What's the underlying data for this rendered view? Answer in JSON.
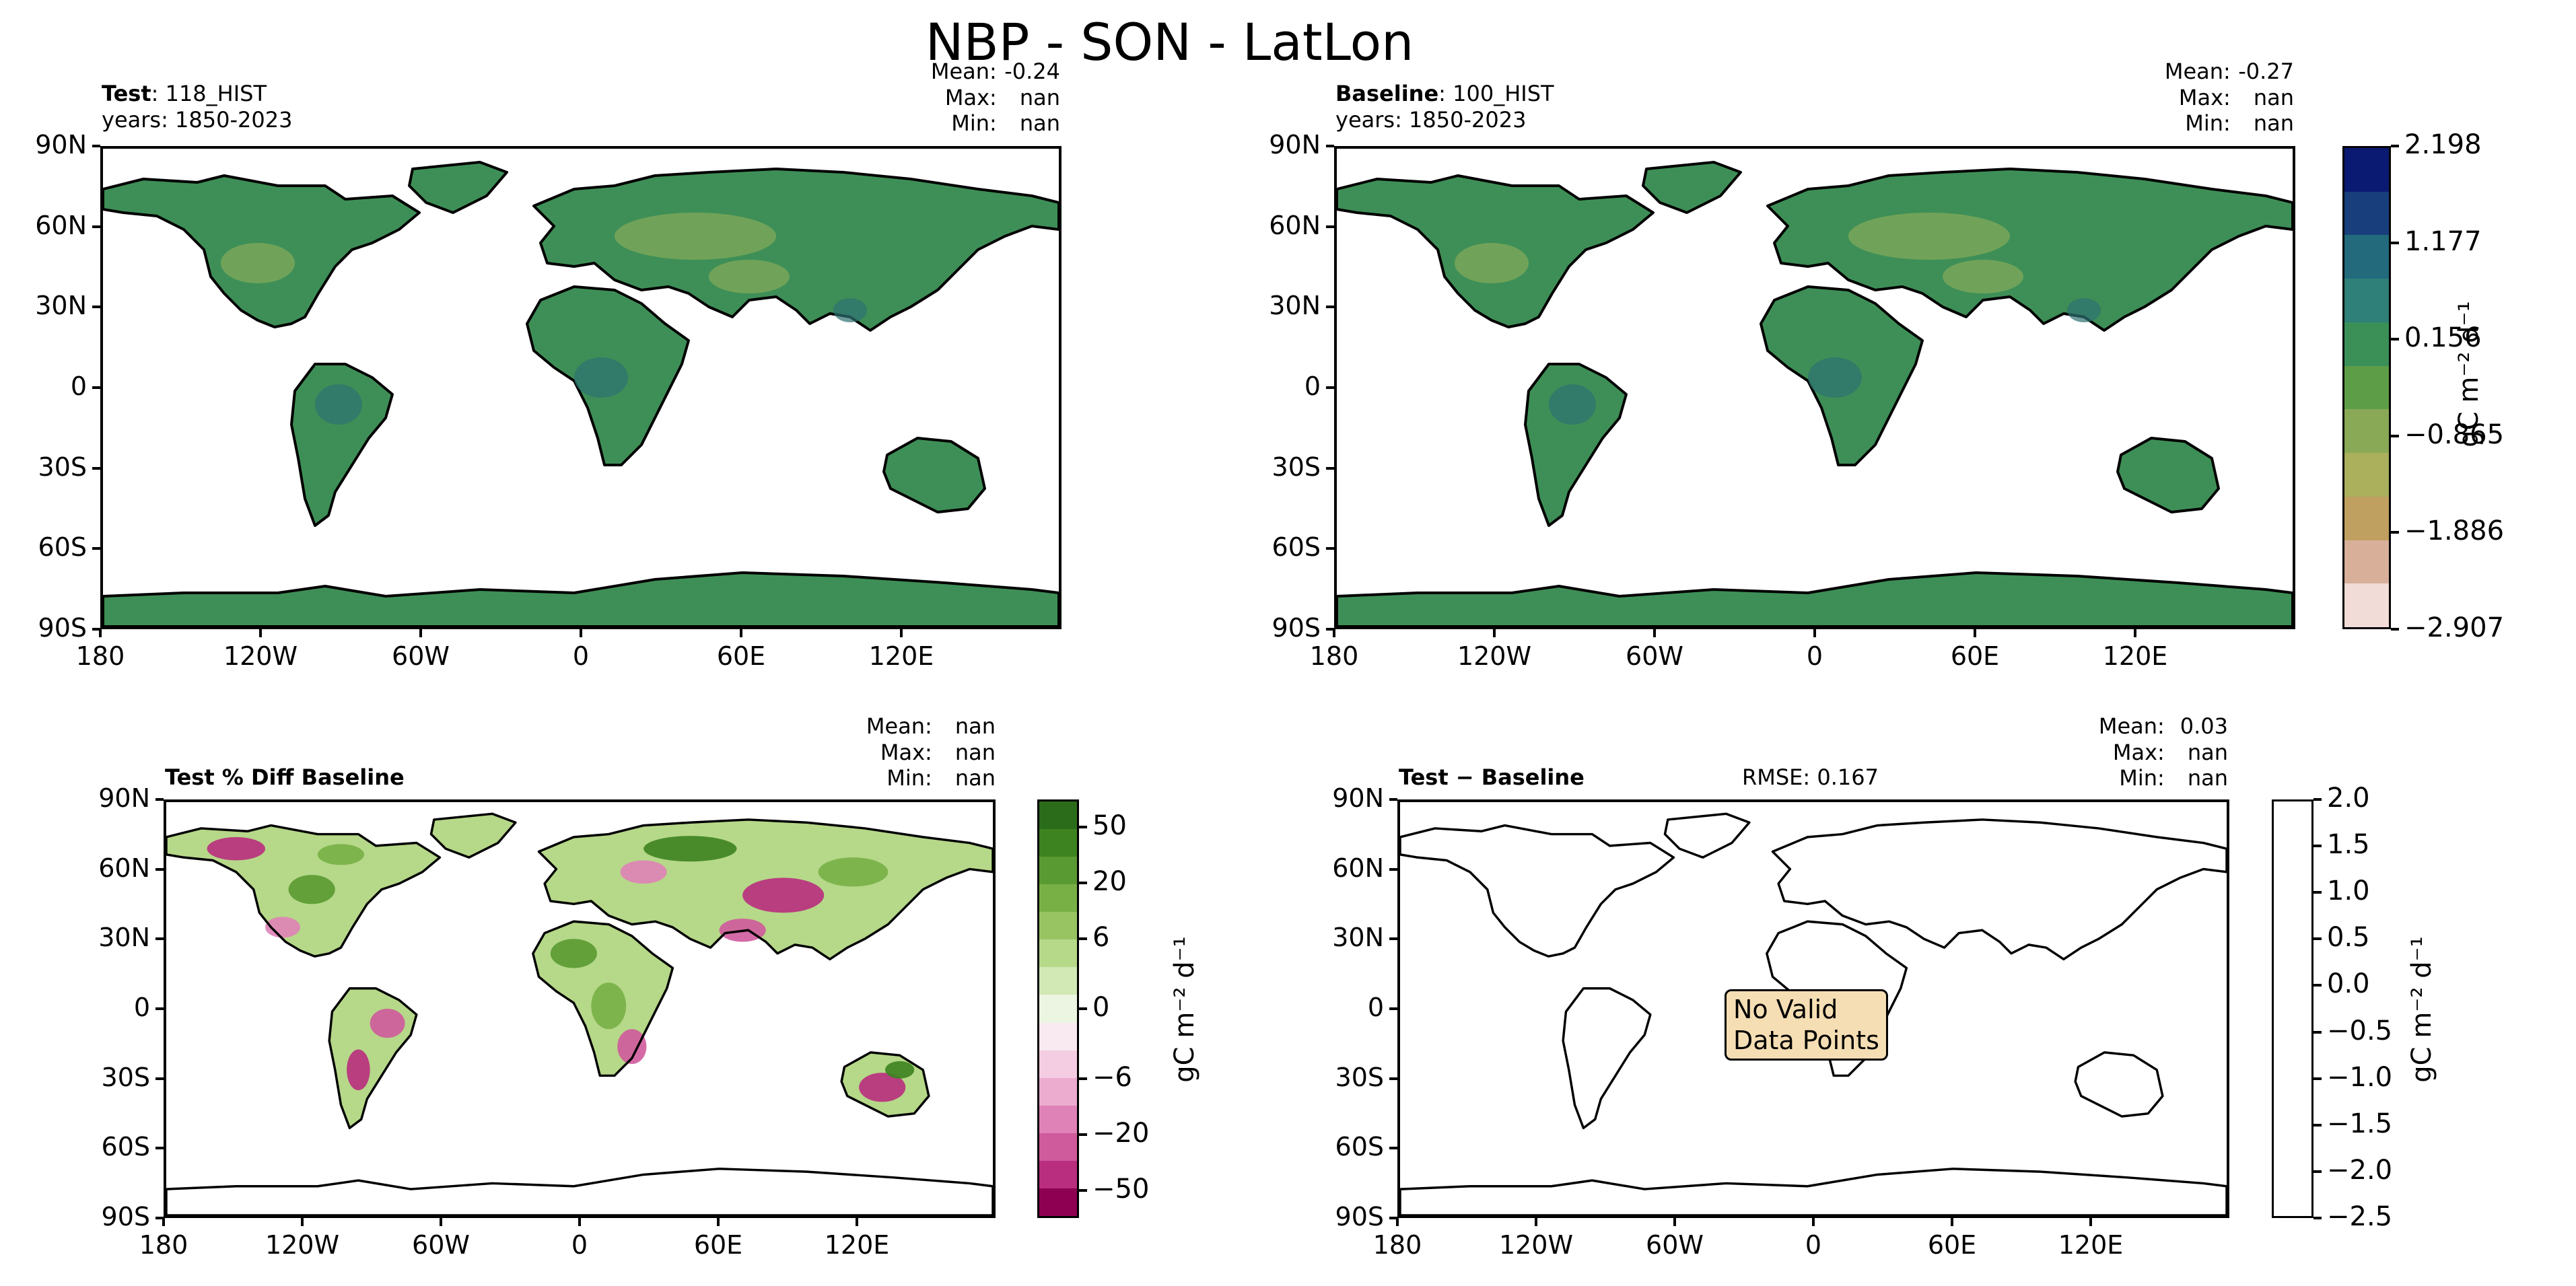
{
  "figure": {
    "title": "NBP - SON - LatLon"
  },
  "panels": {
    "test": {
      "label_bold": "Test",
      "label_rest": ": 118_HIST",
      "years": "years: 1850-2023",
      "stats": {
        "mean_label": "Mean:",
        "mean": "-0.24",
        "max_label": "Max:",
        "max": "nan",
        "min_label": "Min:",
        "min": "nan"
      }
    },
    "baseline": {
      "label_bold": "Baseline",
      "label_rest": ": 100_HIST",
      "years": "years: 1850-2023",
      "stats": {
        "mean_label": "Mean:",
        "mean": "-0.27",
        "max_label": "Max:",
        "max": "nan",
        "min_label": "Min:",
        "min": "nan"
      }
    },
    "pctdiff": {
      "label_bold": "Test % Diff Baseline",
      "stats": {
        "mean_label": "Mean:",
        "mean": "nan",
        "max_label": "Max:",
        "max": "nan",
        "min_label": "Min:",
        "min": "nan"
      }
    },
    "diff": {
      "label_bold": "Test − Baseline",
      "rmse": "RMSE: 0.167",
      "stats": {
        "mean_label": "Mean:",
        "mean": "0.03",
        "max_label": "Max:",
        "max": "nan",
        "min_label": "Min:",
        "min": "nan"
      },
      "no_data": [
        "No Valid",
        "Data Points"
      ]
    }
  },
  "axes": {
    "lat_ticks": [
      "90N",
      "60N",
      "30N",
      "0",
      "30S",
      "60S",
      "90S"
    ],
    "lon_ticks": [
      "180",
      "120W",
      "60W",
      "0",
      "60E",
      "120E"
    ]
  },
  "colorbars": {
    "main": {
      "label": "gC m⁻² d⁻¹",
      "ticks": [
        "2.198",
        "1.177",
        "0.156",
        "−0.865",
        "−1.886",
        "−2.907"
      ],
      "colors": [
        "#0a1a72",
        "#183f7c",
        "#226a7c",
        "#2f8078",
        "#3b9058",
        "#5e9d48",
        "#8aa956",
        "#aab05c",
        "#c0a060",
        "#d8b09a",
        "#f2dcd8"
      ]
    },
    "pctdiff": {
      "label": "gC m⁻² d⁻¹",
      "ticks": [
        "50",
        "20",
        "6",
        "0",
        "−6",
        "−20",
        "−50"
      ],
      "colors": [
        "#2b6c1a",
        "#3d8320",
        "#5a9a32",
        "#78b046",
        "#98c562",
        "#b6d889",
        "#d2e8b5",
        "#ecf5e2",
        "#f9eaf2",
        "#f4cde3",
        "#ebaccf",
        "#df82b7",
        "#cf5a9c",
        "#b92e7e",
        "#8e0152"
      ]
    },
    "diff": {
      "label": "gC m⁻² d⁻¹",
      "ticks": [
        "2.0",
        "1.5",
        "1.0",
        "0.5",
        "0.0",
        "−0.5",
        "−1.0",
        "−1.5",
        "−2.0",
        "−2.5"
      ]
    }
  },
  "style": {
    "land_color": "#3e8f57",
    "land_dry_color": "#7da85a",
    "land_wet_color": "#2e7070"
  }
}
